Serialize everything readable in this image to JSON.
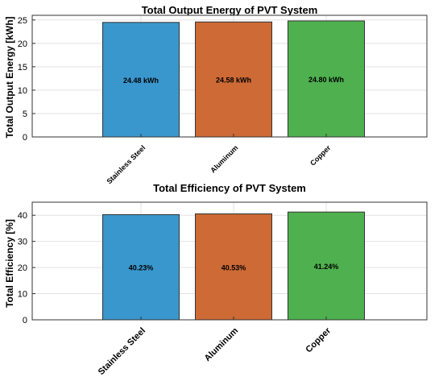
{
  "chart_data": [
    {
      "type": "bar",
      "title": "Total Output Energy of PVT System",
      "xlabel": "",
      "ylabel": "Total Output Energy [kWh]",
      "categories": [
        "Stainless Steel",
        "Aluminum",
        "Copper"
      ],
      "values": [
        24.48,
        24.58,
        24.8
      ],
      "data_labels": [
        "24.48 kWh",
        "24.58 kWh",
        "24.80 kWh"
      ],
      "colors": [
        "#3a97cd",
        "#cd6a35",
        "#4fb04f"
      ],
      "ylim": [
        0,
        26
      ],
      "yticks": [
        0,
        5,
        10,
        15,
        20,
        25
      ],
      "grid": true
    },
    {
      "type": "bar",
      "title": "Total Efficiency of PVT System",
      "xlabel": "",
      "ylabel": "Total Efficiency [%]",
      "categories": [
        "Stainless Steel",
        "Aluminum",
        "Copper"
      ],
      "values": [
        40.23,
        40.53,
        41.24
      ],
      "data_labels": [
        "40.23%",
        "40.53%",
        "41.24%"
      ],
      "colors": [
        "#3a97cd",
        "#cd6a35",
        "#4fb04f"
      ],
      "ylim": [
        0,
        45
      ],
      "yticks": [
        0,
        10,
        20,
        30,
        40
      ],
      "grid": true
    }
  ]
}
